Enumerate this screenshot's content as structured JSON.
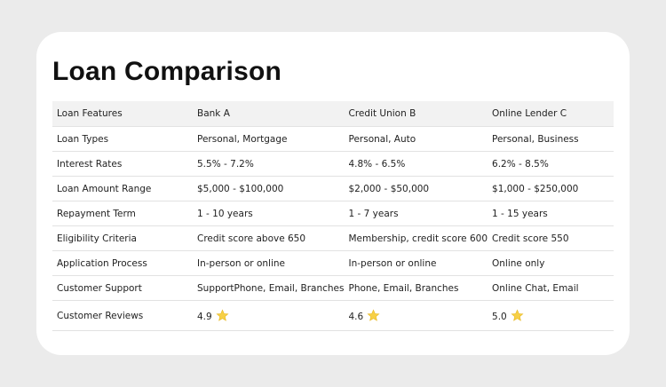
{
  "header": {
    "title": "Loan Comparison"
  },
  "table": {
    "columns": [
      "Loan Features",
      "Bank A",
      "Credit Union B",
      "Online Lender C"
    ],
    "rows": [
      [
        "Loan Types",
        "Personal, Mortgage",
        "Personal, Auto",
        "Personal, Business"
      ],
      [
        "Interest Rates",
        "5.5% - 7.2%",
        "4.8% - 6.5%",
        "6.2% - 8.5%"
      ],
      [
        "Loan Amount Range",
        "$5,000 - $100,000",
        "$2,000 - $50,000",
        "$1,000 - $250,000"
      ],
      [
        "Repayment Term",
        "1 - 10 years",
        "1 - 7 years",
        "1 - 15 years"
      ],
      [
        "Eligibility Criteria",
        "Credit score above 650",
        "Membership, credit score 600",
        "Credit score 550"
      ],
      [
        "Application Process",
        "In-person or online",
        "In-person or online",
        "Online only"
      ],
      [
        "Customer Support",
        "SupportPhone, Email, Branches",
        "Phone, Email, Branches",
        "Online Chat, Email"
      ],
      [
        "Customer Reviews",
        "4.9",
        "4.6",
        "5.0"
      ]
    ]
  }
}
